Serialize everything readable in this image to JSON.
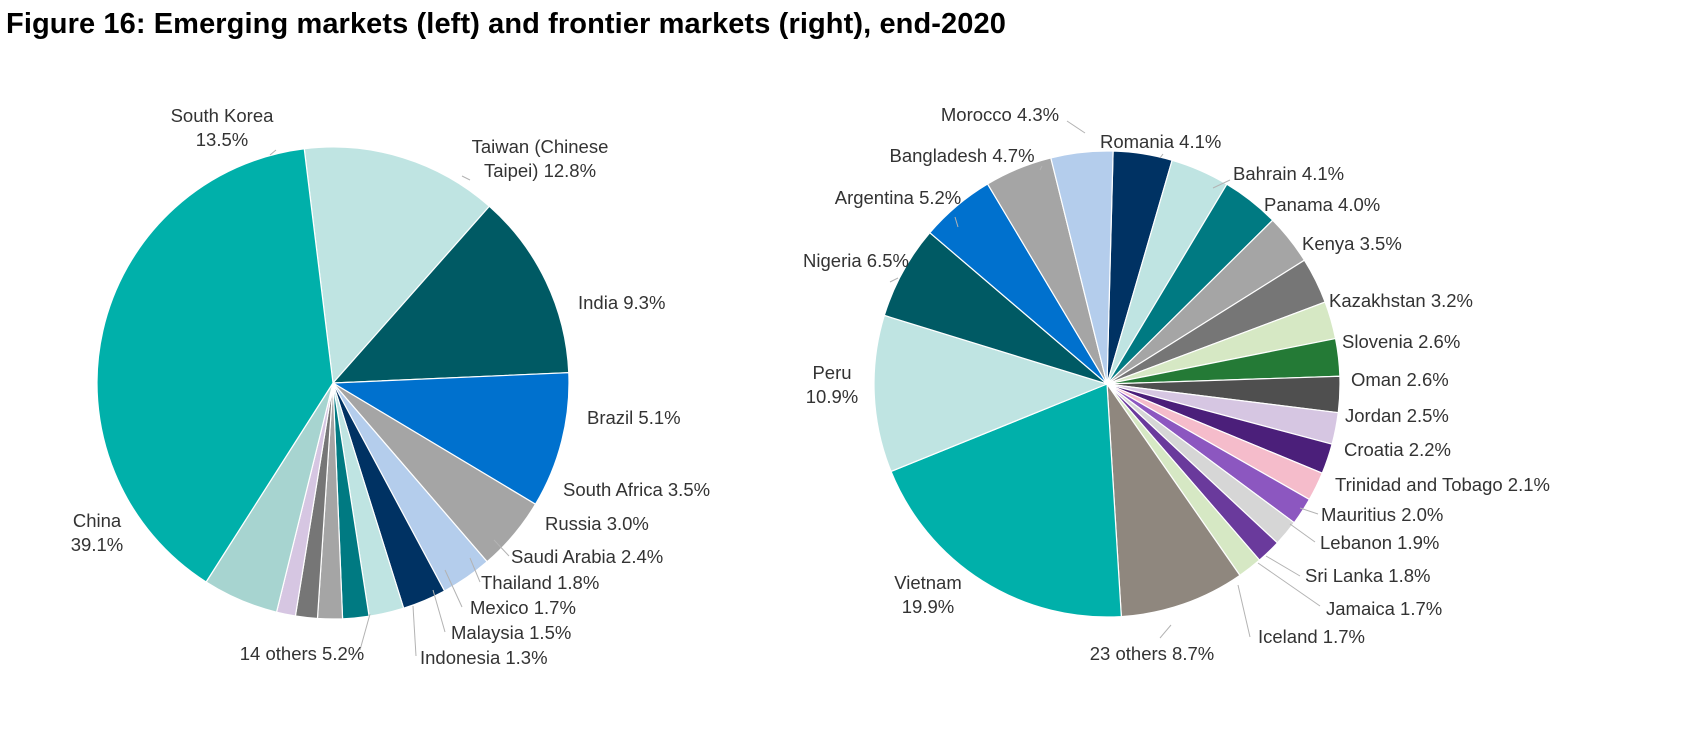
{
  "title": "Figure 16: Emerging markets (left) and frontier markets (right), end-2020",
  "chart_data": [
    {
      "type": "pie",
      "slices": [
        {
          "label": "South Korea",
          "value": 13.5,
          "color": "#bfe4e2"
        },
        {
          "label": "Taiwan (Chinese Taipei)",
          "value": 12.8,
          "color": "#005a64"
        },
        {
          "label": "India",
          "value": 9.3,
          "color": "#0071ce"
        },
        {
          "label": "Brazil",
          "value": 5.1,
          "color": "#a5a5a5"
        },
        {
          "label": "South Africa",
          "value": 3.5,
          "color": "#b4cdec"
        },
        {
          "label": "Russia",
          "value": 3.0,
          "color": "#003263"
        },
        {
          "label": "Saudi Arabia",
          "value": 2.4,
          "color": "#bfe4e2"
        },
        {
          "label": "Thailand",
          "value": 1.8,
          "color": "#007a82"
        },
        {
          "label": "Mexico",
          "value": 1.7,
          "color": "#a5a5a5"
        },
        {
          "label": "Malaysia",
          "value": 1.5,
          "color": "#767676"
        },
        {
          "label": "Indonesia",
          "value": 1.3,
          "color": "#d6c6e2"
        },
        {
          "label": "14 others",
          "value": 5.2,
          "color": "#a7d4d0"
        },
        {
          "label": "China",
          "value": 39.1,
          "color": "#00b0aa"
        }
      ],
      "labels": [
        {
          "lines": [
            "South Korea",
            "13.5%"
          ]
        },
        {
          "lines": [
            "Taiwan (Chinese",
            "Taipei) 12.8%"
          ]
        },
        {
          "lines": [
            "India 9.3%"
          ]
        },
        {
          "lines": [
            "Brazil 5.1%"
          ]
        },
        {
          "lines": [
            "South Africa 3.5%"
          ]
        },
        {
          "lines": [
            "Russia 3.0%"
          ]
        },
        {
          "lines": [
            "Saudi Arabia 2.4%"
          ]
        },
        {
          "lines": [
            "Thailand 1.8%"
          ]
        },
        {
          "lines": [
            "Mexico 1.7%"
          ]
        },
        {
          "lines": [
            "Malaysia 1.5%"
          ]
        },
        {
          "lines": [
            "Indonesia 1.3%"
          ]
        },
        {
          "lines": [
            "14 others 5.2%"
          ]
        },
        {
          "lines": [
            "China",
            "39.1%"
          ]
        }
      ]
    },
    {
      "type": "pie",
      "slices": [
        {
          "label": "Romania",
          "value": 4.1,
          "color": "#003263"
        },
        {
          "label": "Bahrain",
          "value": 4.1,
          "color": "#bfe4e2"
        },
        {
          "label": "Panama",
          "value": 4.0,
          "color": "#007a82"
        },
        {
          "label": "Kenya",
          "value": 3.5,
          "color": "#a5a5a5"
        },
        {
          "label": "Kazakhstan",
          "value": 3.2,
          "color": "#767676"
        },
        {
          "label": "Slovenia",
          "value": 2.6,
          "color": "#d6e8c4"
        },
        {
          "label": "Oman",
          "value": 2.6,
          "color": "#247a36"
        },
        {
          "label": "Jordan",
          "value": 2.5,
          "color": "#4f4f4f"
        },
        {
          "label": "Croatia",
          "value": 2.2,
          "color": "#d6c6e2"
        },
        {
          "label": "Trinidad and Tobago",
          "value": 2.1,
          "color": "#4b1f7a"
        },
        {
          "label": "Mauritius",
          "value": 2.0,
          "color": "#f5bccb"
        },
        {
          "label": "Lebanon",
          "value": 1.9,
          "color": "#8c57c0"
        },
        {
          "label": "Sri Lanka",
          "value": 1.8,
          "color": "#d6d6d6"
        },
        {
          "label": "Jamaica",
          "value": 1.7,
          "color": "#6a3a9c"
        },
        {
          "label": "Iceland",
          "value": 1.7,
          "color": "#d6e8c4"
        },
        {
          "label": "23 others",
          "value": 8.7,
          "color": "#8f877e"
        },
        {
          "label": "Vietnam",
          "value": 19.9,
          "color": "#00b0aa"
        },
        {
          "label": "Peru",
          "value": 10.9,
          "color": "#bfe4e2"
        },
        {
          "label": "Nigeria",
          "value": 6.5,
          "color": "#005a64"
        },
        {
          "label": "Argentina",
          "value": 5.2,
          "color": "#0071ce"
        },
        {
          "label": "Bangladesh",
          "value": 4.7,
          "color": "#a5a5a5"
        },
        {
          "label": "Morocco",
          "value": 4.3,
          "color": "#b4cdec"
        }
      ],
      "labels": [
        {
          "lines": [
            "Romania 4.1%"
          ]
        },
        {
          "lines": [
            "Bahrain 4.1%"
          ]
        },
        {
          "lines": [
            "Panama 4.0%"
          ]
        },
        {
          "lines": [
            "Kenya 3.5%"
          ]
        },
        {
          "lines": [
            "Kazakhstan 3.2%"
          ]
        },
        {
          "lines": [
            "Slovenia 2.6%"
          ]
        },
        {
          "lines": [
            "Oman 2.6%"
          ]
        },
        {
          "lines": [
            "Jordan 2.5%"
          ]
        },
        {
          "lines": [
            "Croatia 2.2%"
          ]
        },
        {
          "lines": [
            "Trinidad and Tobago 2.1%"
          ]
        },
        {
          "lines": [
            "Mauritius 2.0%"
          ]
        },
        {
          "lines": [
            "Lebanon 1.9%"
          ]
        },
        {
          "lines": [
            "Sri Lanka 1.8%"
          ]
        },
        {
          "lines": [
            "Jamaica 1.7%"
          ]
        },
        {
          "lines": [
            "Iceland 1.7%"
          ]
        },
        {
          "lines": [
            "23 others 8.7%"
          ]
        },
        {
          "lines": [
            "Vietnam",
            "19.9%"
          ]
        },
        {
          "lines": [
            "Peru",
            "10.9%"
          ]
        },
        {
          "lines": [
            "Nigeria 6.5%"
          ]
        },
        {
          "lines": [
            "Argentina 5.2%"
          ]
        },
        {
          "lines": [
            "Bangladesh 4.7%"
          ]
        },
        {
          "lines": [
            "Morocco 4.3%"
          ]
        }
      ]
    }
  ]
}
